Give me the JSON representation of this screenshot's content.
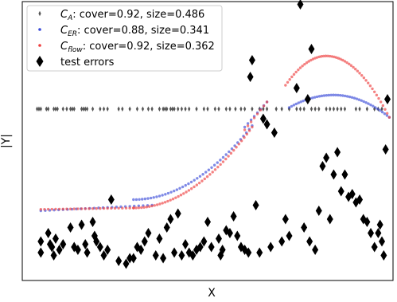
{
  "chart_data": {
    "type": "scatter",
    "xlabel": "X",
    "ylabel": "|Y|",
    "xlim": [
      0,
      1
    ],
    "ylim": [
      0,
      1
    ],
    "x_ticks_shown": false,
    "y_ticks_shown": false,
    "legend_placement": "top-left",
    "legend": [
      {
        "key": "ca",
        "prefix": "C",
        "sub": "A",
        "suffix": ": cover=0.92, size=0.486",
        "color": "#555555",
        "marker": "thin-diamond"
      },
      {
        "key": "cer",
        "prefix": "C",
        "sub": "ER",
        "suffix": ": cover=0.88, size=0.341",
        "color": "#3b4bd9",
        "marker": "dot"
      },
      {
        "key": "cflow",
        "prefix": "C",
        "sub": "flow",
        "suffix": ": cover=0.92, size=0.362",
        "color": "#ee3f3f",
        "marker": "dot"
      },
      {
        "key": "test",
        "label": "test errors",
        "color": "#000000",
        "marker": "diamond"
      }
    ],
    "series": [
      {
        "name": "C_A: cover=0.92, size=0.486",
        "style": "thin-diamond",
        "color": "#555555",
        "points": [
          [
            0.04,
            0.615
          ],
          [
            0.045,
            0.615
          ],
          [
            0.05,
            0.615
          ],
          [
            0.065,
            0.615
          ],
          [
            0.07,
            0.615
          ],
          [
            0.085,
            0.615
          ],
          [
            0.09,
            0.615
          ],
          [
            0.095,
            0.615
          ],
          [
            0.11,
            0.615
          ],
          [
            0.12,
            0.615
          ],
          [
            0.13,
            0.615
          ],
          [
            0.135,
            0.615
          ],
          [
            0.14,
            0.615
          ],
          [
            0.16,
            0.615
          ],
          [
            0.165,
            0.615
          ],
          [
            0.17,
            0.615
          ],
          [
            0.175,
            0.615
          ],
          [
            0.19,
            0.615
          ],
          [
            0.21,
            0.615
          ],
          [
            0.22,
            0.615
          ],
          [
            0.23,
            0.615
          ],
          [
            0.26,
            0.615
          ],
          [
            0.27,
            0.615
          ],
          [
            0.29,
            0.615
          ],
          [
            0.31,
            0.615
          ],
          [
            0.325,
            0.615
          ],
          [
            0.34,
            0.615
          ],
          [
            0.35,
            0.615
          ],
          [
            0.37,
            0.615
          ],
          [
            0.38,
            0.615
          ],
          [
            0.385,
            0.615
          ],
          [
            0.39,
            0.615
          ],
          [
            0.4,
            0.615
          ],
          [
            0.405,
            0.615
          ],
          [
            0.41,
            0.615
          ],
          [
            0.42,
            0.615
          ],
          [
            0.43,
            0.615
          ],
          [
            0.44,
            0.615
          ],
          [
            0.45,
            0.615
          ],
          [
            0.47,
            0.615
          ],
          [
            0.49,
            0.615
          ],
          [
            0.5,
            0.615
          ],
          [
            0.52,
            0.615
          ],
          [
            0.53,
            0.615
          ],
          [
            0.55,
            0.615
          ],
          [
            0.56,
            0.615
          ],
          [
            0.575,
            0.615
          ],
          [
            0.59,
            0.615
          ],
          [
            0.6,
            0.615
          ],
          [
            0.62,
            0.615
          ],
          [
            0.64,
            0.615
          ],
          [
            0.65,
            0.615
          ],
          [
            0.66,
            0.615
          ],
          [
            0.685,
            0.615
          ],
          [
            0.7,
            0.615
          ],
          [
            0.72,
            0.615
          ],
          [
            0.74,
            0.615
          ],
          [
            0.75,
            0.615
          ],
          [
            0.76,
            0.615
          ],
          [
            0.78,
            0.615
          ],
          [
            0.79,
            0.615
          ],
          [
            0.8,
            0.615
          ],
          [
            0.82,
            0.615
          ],
          [
            0.83,
            0.615
          ],
          [
            0.84,
            0.615
          ],
          [
            0.85,
            0.615
          ],
          [
            0.86,
            0.615
          ],
          [
            0.87,
            0.615
          ],
          [
            0.9,
            0.615
          ],
          [
            0.91,
            0.615
          ],
          [
            0.93,
            0.615
          ],
          [
            0.95,
            0.615
          ],
          [
            0.96,
            0.615
          ],
          [
            0.97,
            0.615
          ]
        ]
      },
      {
        "name": "C_ER: cover=0.88, size=0.341",
        "style": "dot",
        "color": "#3b4bd9",
        "curves": [
          {
            "xs": [
              0.05,
              0.35
            ],
            "ys": [
              0.25,
              0.27
            ],
            "n": 26,
            "kind": "linear"
          },
          {
            "xs": [
              0.3,
              0.62
            ],
            "ys": [
              0.29,
              0.555
            ],
            "n": 42,
            "kind": "quad"
          },
          {
            "xs": [
              0.6,
              0.66
            ],
            "ys": [
              0.55,
              0.64
            ],
            "n": 8,
            "kind": "linear"
          },
          {
            "xs": [
              0.72,
              0.99
            ],
            "ys": [
              0.62,
              0.585
            ],
            "n": 44,
            "kind": "hump",
            "peak": 0.665,
            "peak_x": 0.84
          }
        ]
      },
      {
        "name": "C_flow: cover=0.92, size=0.362",
        "style": "dot",
        "color": "#ee3f3f",
        "curves": [
          {
            "xs": [
              0.05,
              0.3
            ],
            "ys": [
              0.255,
              0.26
            ],
            "n": 26,
            "kind": "linear"
          },
          {
            "xs": [
              0.3,
              0.62
            ],
            "ys": [
              0.26,
              0.55
            ],
            "n": 46,
            "kind": "quad"
          },
          {
            "xs": [
              0.6,
              0.66
            ],
            "ys": [
              0.54,
              0.64
            ],
            "n": 8,
            "kind": "linear"
          },
          {
            "xs": [
              0.71,
              0.99
            ],
            "ys": [
              0.7,
              0.585
            ],
            "n": 50,
            "kind": "hump",
            "peak": 0.805,
            "peak_x": 0.82
          }
        ]
      },
      {
        "name": "test errors",
        "style": "diamond",
        "color": "#000000",
        "points": [
          [
            0.05,
            0.14
          ],
          [
            0.05,
            0.1
          ],
          [
            0.07,
            0.17
          ],
          [
            0.075,
            0.13
          ],
          [
            0.08,
            0.12
          ],
          [
            0.085,
            0.09
          ],
          [
            0.09,
            0.15
          ],
          [
            0.1,
            0.11
          ],
          [
            0.11,
            0.13
          ],
          [
            0.13,
            0.19
          ],
          [
            0.14,
            0.12
          ],
          [
            0.15,
            0.11
          ],
          [
            0.16,
            0.2
          ],
          [
            0.17,
            0.13
          ],
          [
            0.175,
            0.1
          ],
          [
            0.19,
            0.21
          ],
          [
            0.195,
            0.16
          ],
          [
            0.2,
            0.14
          ],
          [
            0.21,
            0.12
          ],
          [
            0.22,
            0.09
          ],
          [
            0.23,
            0.11
          ],
          [
            0.24,
            0.29
          ],
          [
            0.26,
            0.07
          ],
          [
            0.28,
            0.06
          ],
          [
            0.29,
            0.08
          ],
          [
            0.3,
            0.08
          ],
          [
            0.31,
            0.12
          ],
          [
            0.32,
            0.11
          ],
          [
            0.33,
            0.14
          ],
          [
            0.34,
            0.17
          ],
          [
            0.36,
            0.09
          ],
          [
            0.37,
            0.15
          ],
          [
            0.38,
            0.08
          ],
          [
            0.39,
            0.19
          ],
          [
            0.4,
            0.22
          ],
          [
            0.41,
            0.1
          ],
          [
            0.42,
            0.24
          ],
          [
            0.43,
            0.09
          ],
          [
            0.44,
            0.13
          ],
          [
            0.45,
            0.1
          ],
          [
            0.46,
            0.09
          ],
          [
            0.47,
            0.11
          ],
          [
            0.48,
            0.12
          ],
          [
            0.49,
            0.14
          ],
          [
            0.5,
            0.21
          ],
          [
            0.51,
            0.12
          ],
          [
            0.53,
            0.15
          ],
          [
            0.535,
            0.09
          ],
          [
            0.54,
            0.11
          ],
          [
            0.55,
            0.18
          ],
          [
            0.56,
            0.17
          ],
          [
            0.57,
            0.23
          ],
          [
            0.58,
            0.16
          ],
          [
            0.59,
            0.12
          ],
          [
            0.6,
            0.11
          ],
          [
            0.61,
            0.1
          ],
          [
            0.615,
            0.73
          ],
          [
            0.62,
            0.79
          ],
          [
            0.63,
            0.27
          ],
          [
            0.64,
            0.1
          ],
          [
            0.65,
            0.58
          ],
          [
            0.66,
            0.56
          ],
          [
            0.67,
            0.12
          ],
          [
            0.68,
            0.53
          ],
          [
            0.7,
            0.14
          ],
          [
            0.71,
            0.22
          ],
          [
            0.72,
            0.16
          ],
          [
            0.74,
            0.69
          ],
          [
            0.75,
            0.99
          ],
          [
            0.76,
            0.19
          ],
          [
            0.77,
            0.65
          ],
          [
            0.775,
            0.14
          ],
          [
            0.78,
            0.83
          ],
          [
            0.79,
            0.11
          ],
          [
            0.8,
            0.25
          ],
          [
            0.81,
            0.41
          ],
          [
            0.82,
            0.44
          ],
          [
            0.83,
            0.22
          ],
          [
            0.84,
            0.38
          ],
          [
            0.85,
            0.46
          ],
          [
            0.86,
            0.32
          ],
          [
            0.87,
            0.38
          ],
          [
            0.88,
            0.3
          ],
          [
            0.89,
            0.31
          ],
          [
            0.9,
            0.28
          ],
          [
            0.91,
            0.29
          ],
          [
            0.92,
            0.22
          ],
          [
            0.93,
            0.21
          ],
          [
            0.94,
            0.17
          ],
          [
            0.95,
            0.12
          ],
          [
            0.96,
            0.17
          ],
          [
            0.965,
            0.2
          ],
          [
            0.97,
            0.14
          ],
          [
            0.975,
            0.09
          ],
          [
            0.98,
            0.47
          ],
          [
            0.985,
            0.65
          ]
        ]
      }
    ]
  }
}
